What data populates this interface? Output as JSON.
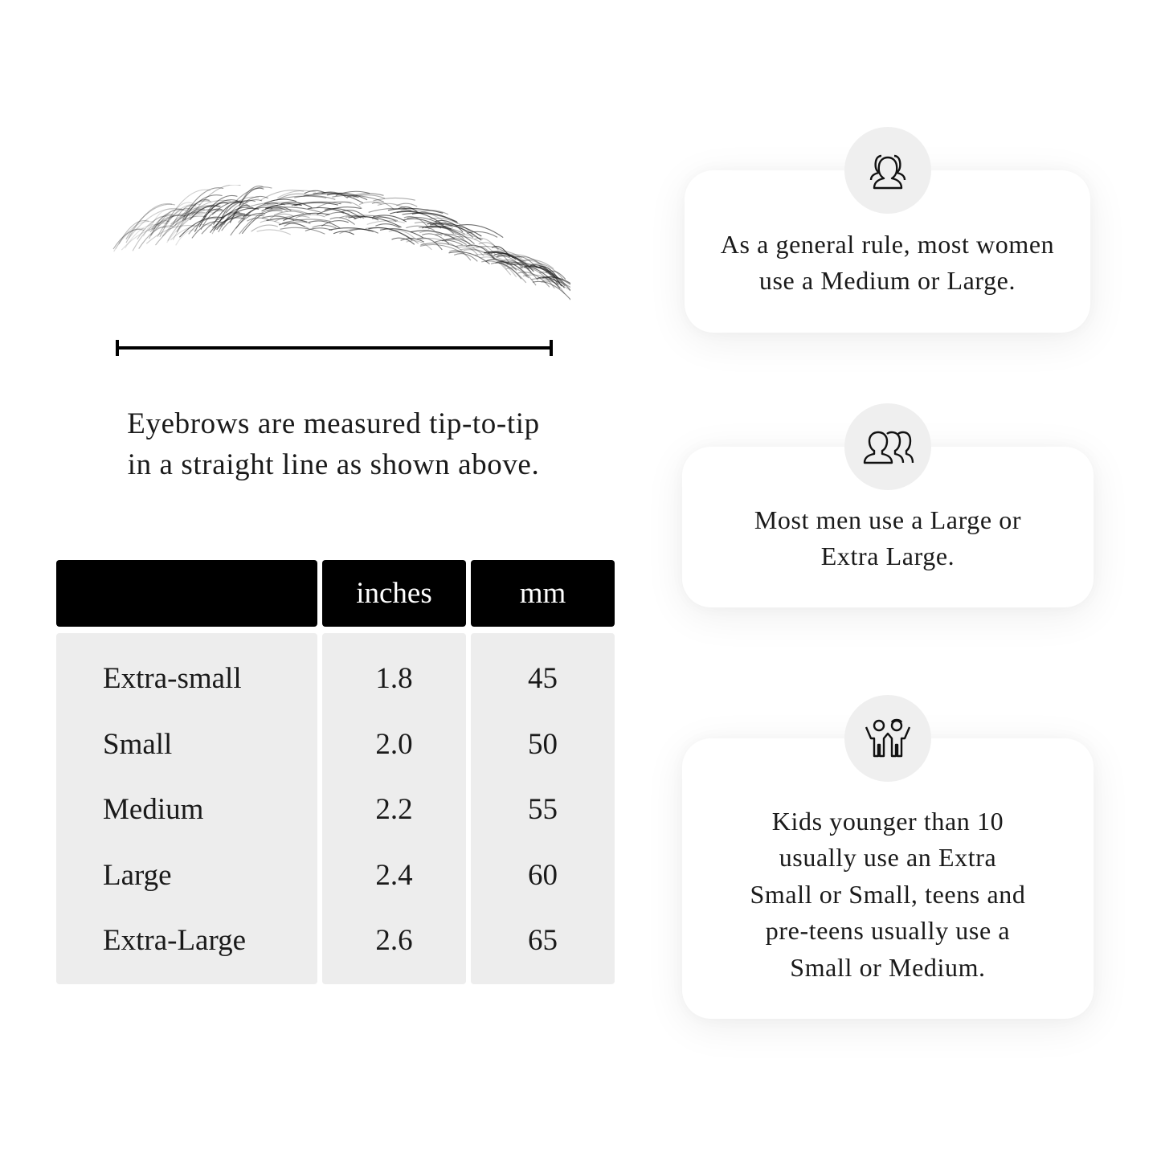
{
  "caption": {
    "line1": "Eyebrows are measured tip-to-tip",
    "line2": "in a straight line as shown above."
  },
  "table": {
    "headers": [
      "",
      "inches",
      "mm"
    ],
    "rows": [
      {
        "size": "Extra-small",
        "inches": "1.8",
        "mm": "45"
      },
      {
        "size": "Small",
        "inches": "2.0",
        "mm": "50"
      },
      {
        "size": "Medium",
        "inches": "2.2",
        "mm": "55"
      },
      {
        "size": "Large",
        "inches": "2.4",
        "mm": "60"
      },
      {
        "size": "Extra-Large",
        "inches": "2.6",
        "mm": "65"
      }
    ]
  },
  "cards": [
    {
      "icon": "women-group-icon",
      "lines": [
        "As a general rule, most women",
        "use a Medium or Large."
      ]
    },
    {
      "icon": "men-group-icon",
      "lines": [
        "Most men use a Large or",
        "Extra Large."
      ]
    },
    {
      "icon": "kids-icon",
      "lines": [
        "Kids younger than 10",
        "usually use an Extra",
        "Small or Small, teens and",
        "pre-teens usually use a",
        "Small or Medium."
      ]
    }
  ],
  "colors": {
    "header_bg": "#000000",
    "body_bg": "#ededed",
    "icon_circle": "#efefef"
  }
}
